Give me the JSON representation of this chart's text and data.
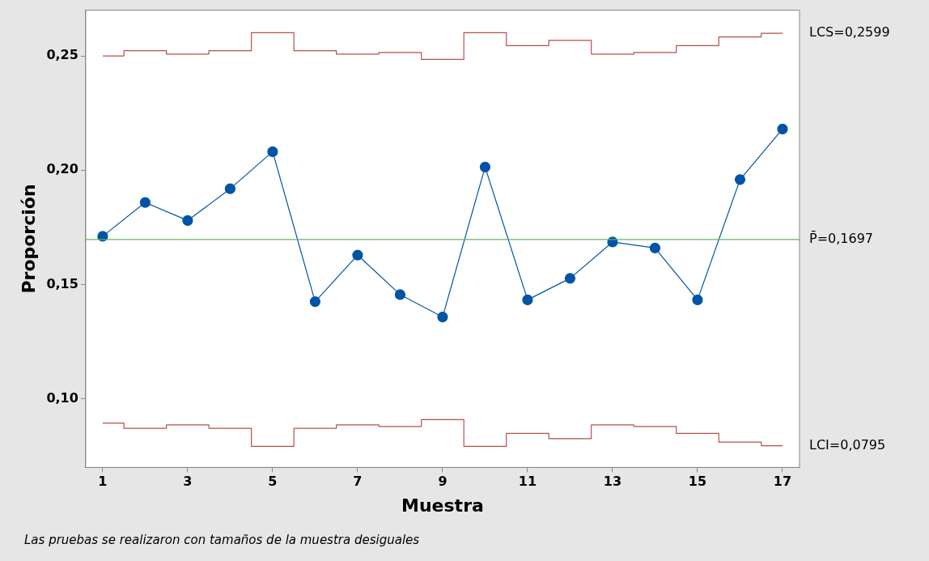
{
  "chart_data": {
    "type": "line",
    "xlabel": "Muestra",
    "ylabel": "Proporción",
    "x": [
      1,
      2,
      3,
      4,
      5,
      6,
      7,
      8,
      9,
      10,
      11,
      12,
      13,
      14,
      15,
      16,
      17
    ],
    "series": [
      {
        "type": "line",
        "color": "#0054a6",
        "marker": "circle",
        "values": [
          0.1711,
          0.1859,
          0.178,
          0.1919,
          0.2081,
          0.1425,
          0.1629,
          0.1456,
          0.1358,
          0.2014,
          0.1433,
          0.1527,
          0.1686,
          0.166,
          0.1433,
          0.1959,
          0.218
        ]
      },
      {
        "type": "step",
        "name": "LCS=0,2599",
        "color": "#b5504a",
        "marker": "none",
        "values": [
          0.25,
          0.2523,
          0.2508,
          0.2523,
          0.2602,
          0.2523,
          0.2508,
          0.2515,
          0.2485,
          0.2602,
          0.2545,
          0.2568,
          0.2508,
          0.2515,
          0.2545,
          0.2583,
          0.2599
        ]
      },
      {
        "type": "step",
        "name": "LCI=0,0795",
        "color": "#b5504a",
        "marker": "none",
        "values": [
          0.0894,
          0.0871,
          0.0886,
          0.0871,
          0.0792,
          0.0871,
          0.0886,
          0.0879,
          0.0909,
          0.0792,
          0.0849,
          0.0826,
          0.0886,
          0.0879,
          0.0849,
          0.0811,
          0.0795
        ]
      }
    ],
    "ref_lines": [
      {
        "axis": "y",
        "value": 0.1697,
        "label": "P̄=0,1697",
        "color": "#5cb85c"
      }
    ],
    "xlim": [
      0.6,
      17.4
    ],
    "xticks": [
      1,
      3,
      5,
      7,
      9,
      11,
      13,
      15,
      17
    ],
    "ylim": [
      0.07,
      0.27
    ],
    "yticks": [
      {
        "value": 0.1,
        "label": "0,10"
      },
      {
        "value": 0.15,
        "label": "0,15"
      },
      {
        "value": 0.2,
        "label": "0,20"
      },
      {
        "value": 0.25,
        "label": "0,25"
      }
    ],
    "grid": false,
    "legend": false,
    "annotations": [
      "Las pruebas se realizaron con tamaños de la muestra desiguales"
    ]
  }
}
